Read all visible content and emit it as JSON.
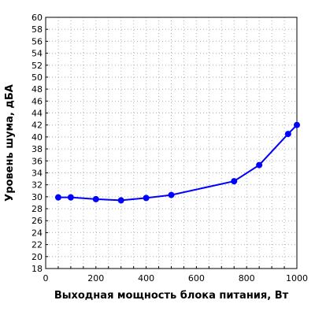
{
  "chart_data": {
    "type": "line",
    "title": "",
    "xlabel": "Выходная мощность блока питания, Вт",
    "ylabel": "Уровень шума, дБА",
    "xlim": [
      0,
      1000
    ],
    "ylim": [
      18,
      60
    ],
    "x_ticks": [
      0,
      200,
      400,
      600,
      800,
      1000
    ],
    "x_minor_step": 50,
    "y_ticks": [
      18,
      20,
      22,
      24,
      26,
      28,
      30,
      32,
      34,
      36,
      38,
      40,
      42,
      44,
      46,
      48,
      50,
      52,
      54,
      56,
      58,
      60
    ],
    "grid": true,
    "series": [
      {
        "color": "#0000ff",
        "x": [
          50,
          100,
          200,
          300,
          400,
          500,
          750,
          850,
          965,
          1000
        ],
        "y": [
          29.9,
          29.9,
          29.6,
          29.4,
          29.8,
          30.3,
          32.6,
          35.3,
          40.5,
          42.0
        ]
      }
    ]
  }
}
